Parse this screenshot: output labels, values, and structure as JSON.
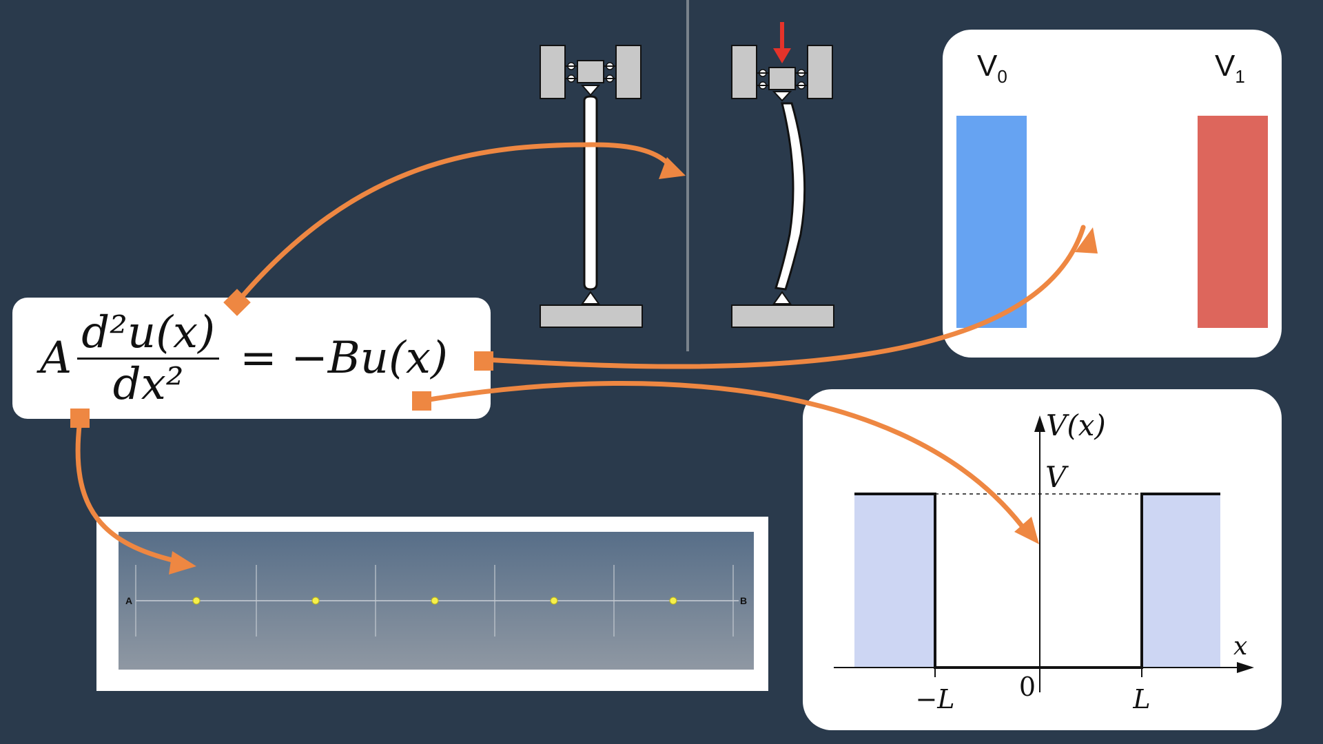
{
  "equation": {
    "coef_a": "A",
    "numerator": "d²u(x)",
    "denominator": "dx²",
    "rhs": "= −Bu(x)"
  },
  "voltage_panel": {
    "left_label": "V",
    "left_sub": "0",
    "right_label": "V",
    "right_sub": "1",
    "left_color": "#66a3f2",
    "right_color": "#dd665c"
  },
  "potential_well": {
    "y_axis_label": "V(x)",
    "x_axis_label": "x",
    "level_label": "V",
    "tick_neg": "−L",
    "tick_zero": "0",
    "tick_pos": "L",
    "fill_color": "#cdd6f3"
  },
  "chain": {
    "left_end": "A",
    "right_end": "B"
  },
  "colors": {
    "background": "#2a3a4c",
    "arrow": "#ee8742"
  }
}
